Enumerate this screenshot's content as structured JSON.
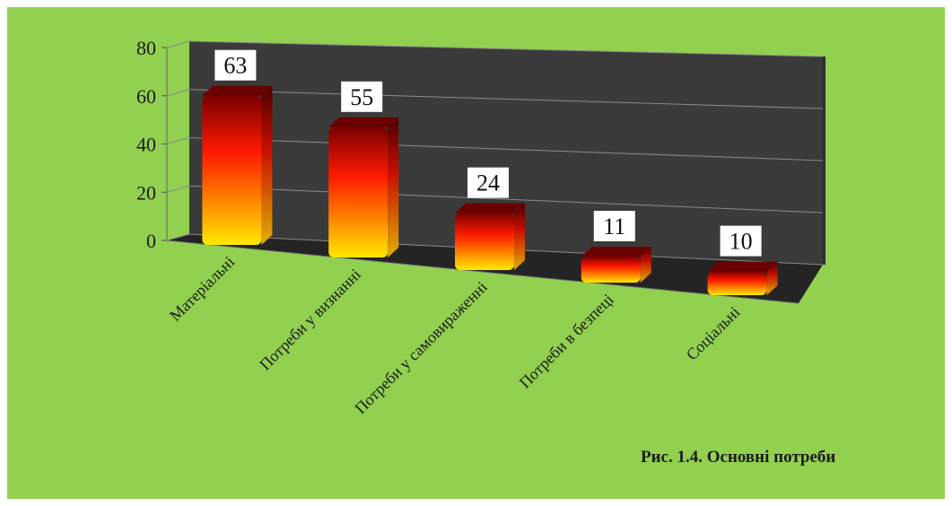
{
  "caption": "Рис. 1.4. Основні потреби",
  "chart_data": {
    "type": "bar",
    "categories": [
      "Матеріальні",
      "Потреби у визнанні",
      "Потреби у самовираженні",
      "Потреби в безпеці",
      "Соціальні"
    ],
    "values": [
      63,
      55,
      24,
      11,
      10
    ],
    "data_labels": [
      "63",
      "55",
      "24",
      "11",
      "10"
    ],
    "ylim": [
      0,
      80
    ],
    "yticks": [
      0,
      20,
      40,
      60,
      80
    ],
    "ytick_labels": [
      "0",
      "20",
      "40",
      "60",
      "80"
    ],
    "grid": true,
    "title": "",
    "xlabel": "",
    "ylabel": "",
    "style": "3d-column",
    "colors": {
      "background": "#92d050",
      "wall": "#3a3a3a",
      "floor": "#242424",
      "gridline": "#8a8a8a",
      "bar_top": "#7a0000",
      "bar_mid": "#ff1a00",
      "bar_bottom": "#ffe800",
      "label_box": "#ffffff"
    }
  }
}
